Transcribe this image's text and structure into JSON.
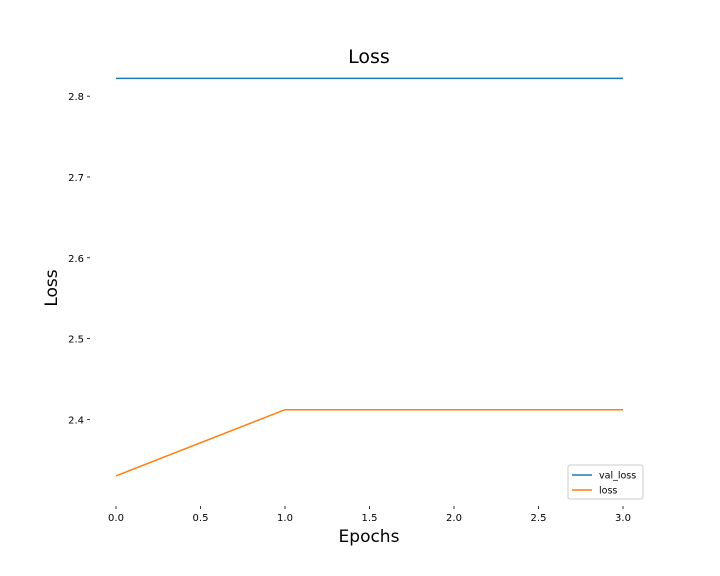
{
  "chart_data": {
    "type": "line",
    "title": "Loss",
    "xlabel": "Epochs",
    "ylabel": "Loss",
    "x": [
      0,
      1,
      2,
      3
    ],
    "xlim": [
      0,
      3
    ],
    "ylim": [
      2.32,
      2.82
    ],
    "xticks": [
      0,
      0.5,
      1,
      1.5,
      2,
      2.5,
      3
    ],
    "xtick_labels": [
      "0.0",
      "0.5",
      "1.0",
      "1.5",
      "2.0",
      "2.5",
      "3.0"
    ],
    "yticks": [
      2.4,
      2.5,
      2.6,
      2.7,
      2.8
    ],
    "ytick_labels": [
      "2.4",
      "2.5",
      "2.6",
      "2.7",
      "2.8"
    ],
    "grid": false,
    "legend": "lower-right",
    "series": [
      {
        "name": "val_loss",
        "color": "#1f77b4",
        "values": [
          2.822,
          2.822,
          2.822,
          2.822
        ]
      },
      {
        "name": "loss",
        "color": "#ff7f0e",
        "values": [
          2.33,
          2.412,
          2.412,
          2.412
        ]
      }
    ]
  }
}
